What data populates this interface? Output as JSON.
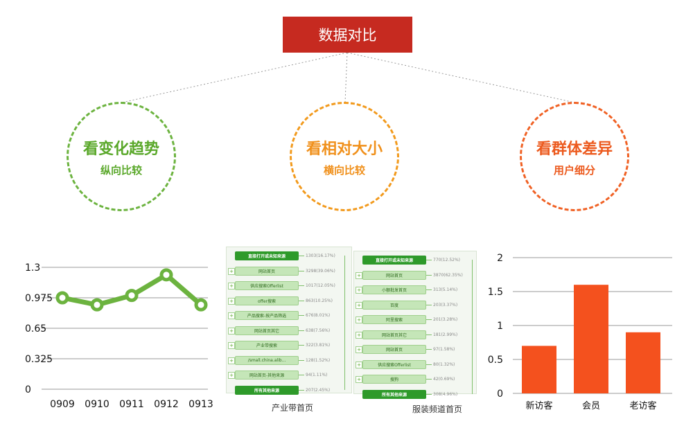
{
  "title": "数据对比",
  "circles": [
    {
      "big": "看变化趋势",
      "small": "纵向比较",
      "color": "#5aa82a"
    },
    {
      "big": "看相对大小",
      "small": "横向比较",
      "color": "#f0901b"
    },
    {
      "big": "看群体差异",
      "small": "用户细分",
      "color": "#ec5a1e"
    }
  ],
  "chart_data": [
    {
      "type": "line",
      "categories": [
        "0909",
        "0910",
        "0911",
        "0912",
        "0913"
      ],
      "values": [
        0.975,
        0.9,
        1.0,
        1.22,
        0.9
      ],
      "yticks": [
        "1.3",
        "0.975",
        "0.65",
        "0.325",
        "0"
      ],
      "ylim": [
        0,
        1.3
      ],
      "color": "#6cb33f",
      "grid": true
    },
    {
      "type": "bar",
      "categories": [
        "新访客",
        "会员",
        "老访客"
      ],
      "values": [
        0.7,
        1.6,
        0.9
      ],
      "yticks": [
        "2",
        "1.5",
        "1",
        "0.5",
        "0"
      ],
      "ylim": [
        0,
        2
      ],
      "color": "#f4511e",
      "grid": true
    }
  ],
  "flows": {
    "left": {
      "caption": "产业带首页",
      "head": "直接打开或未知来源",
      "head_val": "1303(16.17%)",
      "items": [
        {
          "label": "网站首页",
          "val": "3298(39.06%)"
        },
        {
          "label": "供应搜索Offerlist",
          "val": "1017(12.05%)"
        },
        {
          "label": "offer搜索",
          "val": "863(10.25%)"
        },
        {
          "label": "产品搜索-按产品筛选",
          "val": "676(8.01%)"
        },
        {
          "label": "网站首页其它",
          "val": "638(7.56%)"
        },
        {
          "label": "产业带搜索",
          "val": "322(3.81%)"
        },
        {
          "label": "/small.china.alib...",
          "val": "128(1.52%)"
        },
        {
          "label": "网站首页-其他来源",
          "val": "94(1.11%)"
        }
      ],
      "foot": "所有其他来源",
      "foot_val": "207(2.45%)"
    },
    "right": {
      "caption": "服装频道首页",
      "head": "直接打开或未知来源",
      "head_val": "770(12.52%)",
      "items": [
        {
          "label": "网站首页",
          "val": "3870(62.35%)"
        },
        {
          "label": "小额批发首页",
          "val": "313(5.14%)"
        },
        {
          "label": "百度",
          "val": "203(3.37%)"
        },
        {
          "label": "阿里搜索",
          "val": "201(3.28%)"
        },
        {
          "label": "网站首页其它",
          "val": "181(2.99%)"
        },
        {
          "label": "网站首页",
          "val": "97(1.58%)"
        },
        {
          "label": "供应搜索Offerlist",
          "val": "80(1.32%)"
        },
        {
          "label": "搜狗",
          "val": "42(0.69%)"
        }
      ],
      "foot": "所有其他来源",
      "foot_val": "308(4.96%)"
    }
  }
}
